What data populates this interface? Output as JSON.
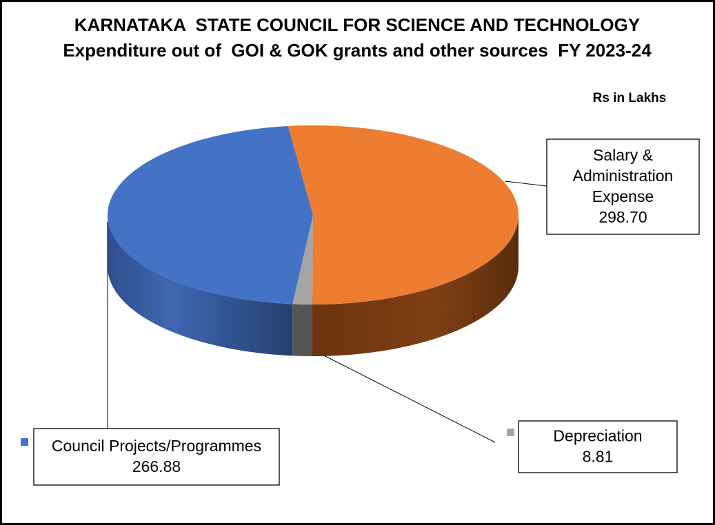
{
  "chart_data": {
    "type": "pie",
    "title": "KARNATAKA  STATE COUNCIL FOR SCIENCE AND TECHNOLOGY",
    "subtitle": "Expenditure out of  GOI & GOK grants and other sources  FY 2023-24",
    "unit_note": "Rs in Lakhs",
    "three_d": true,
    "legend": "none",
    "slices": [
      {
        "label_lines": [
          "Salary &",
          "Administration",
          "Expense"
        ],
        "value": 298.7,
        "value_text": "298.70",
        "color": "#ED7D31",
        "side_color": "#8A4516"
      },
      {
        "label_lines": [
          "Depreciation"
        ],
        "value": 8.81,
        "value_text": "8.81",
        "color": "#A5A5A5",
        "side_color": "#555555"
      },
      {
        "label_lines": [
          "Council Projects/Programmes"
        ],
        "value": 266.88,
        "value_text": "266.88",
        "color": "#4472C4",
        "side_color": "#2C4A80"
      }
    ]
  }
}
